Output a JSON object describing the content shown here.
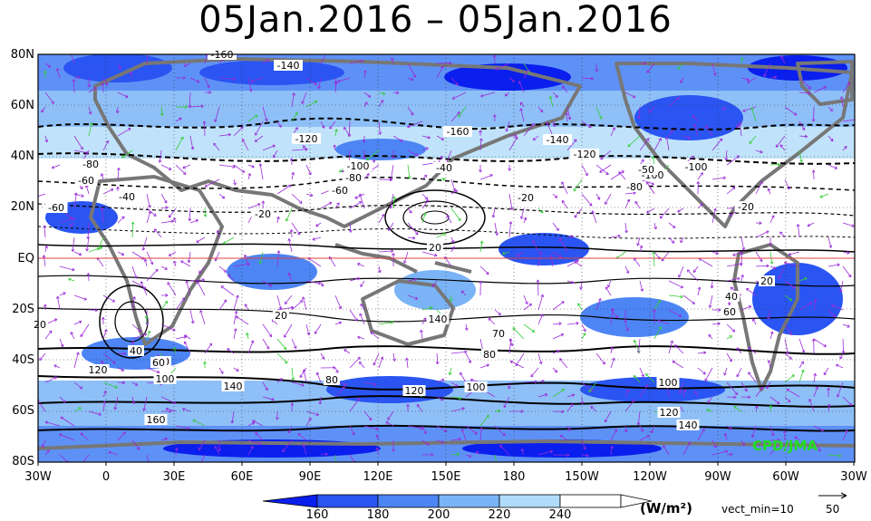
{
  "title": "05Jan.2016 – 05Jan.2016",
  "credit": "CPD/JMA",
  "units": "(W/m²)",
  "vect_min_label": "vect_min=10",
  "reference_vector_value": "50",
  "lat_labels": [
    "80N",
    "60N",
    "40N",
    "20N",
    "EQ",
    "20S",
    "40S",
    "60S",
    "80S"
  ],
  "lon_labels": [
    "30W",
    "0",
    "30E",
    "60E",
    "90E",
    "120E",
    "150E",
    "180",
    "150W",
    "120W",
    "90W",
    "60W",
    "30W"
  ],
  "legend": {
    "labels": [
      "160",
      "180",
      "200",
      "220",
      "240"
    ],
    "colors": [
      "#0a1eee",
      "#2a55f2",
      "#4d85f4",
      "#7ab4f6",
      "#b0dcfa"
    ]
  },
  "colors": {
    "land": "#777777",
    "vector_purple": "#9a2bd8",
    "vector_green": "#33cc33",
    "equator": "#e04040",
    "contour": "#000000"
  },
  "contour_labels": [
    {
      "text": "-160"
    },
    {
      "text": "-140"
    },
    {
      "text": "-120"
    },
    {
      "text": "-160"
    },
    {
      "text": "-140"
    },
    {
      "text": "-120"
    },
    {
      "text": "-100"
    },
    {
      "text": "-100"
    },
    {
      "text": "-80"
    },
    {
      "text": "-60"
    },
    {
      "text": "-40"
    },
    {
      "text": "-20"
    },
    {
      "text": "-80"
    },
    {
      "text": "-60"
    },
    {
      "text": "-40"
    },
    {
      "text": "-20"
    },
    {
      "text": "-100"
    },
    {
      "text": "-80"
    },
    {
      "text": "-60"
    },
    {
      "text": "-50"
    },
    {
      "text": "-20"
    },
    {
      "text": "20"
    },
    {
      "text": "20"
    },
    {
      "text": "20"
    },
    {
      "text": "40"
    },
    {
      "text": "60"
    },
    {
      "text": "140"
    },
    {
      "text": "70"
    },
    {
      "text": "60"
    },
    {
      "text": "80"
    },
    {
      "text": "40"
    },
    {
      "text": "60"
    },
    {
      "text": "120"
    },
    {
      "text": "100"
    },
    {
      "text": "140"
    },
    {
      "text": "80"
    },
    {
      "text": "120"
    },
    {
      "text": "100"
    },
    {
      "text": "100"
    },
    {
      "text": "120"
    },
    {
      "text": "140"
    },
    {
      "text": "160"
    },
    {
      "text": "20"
    }
  ]
}
